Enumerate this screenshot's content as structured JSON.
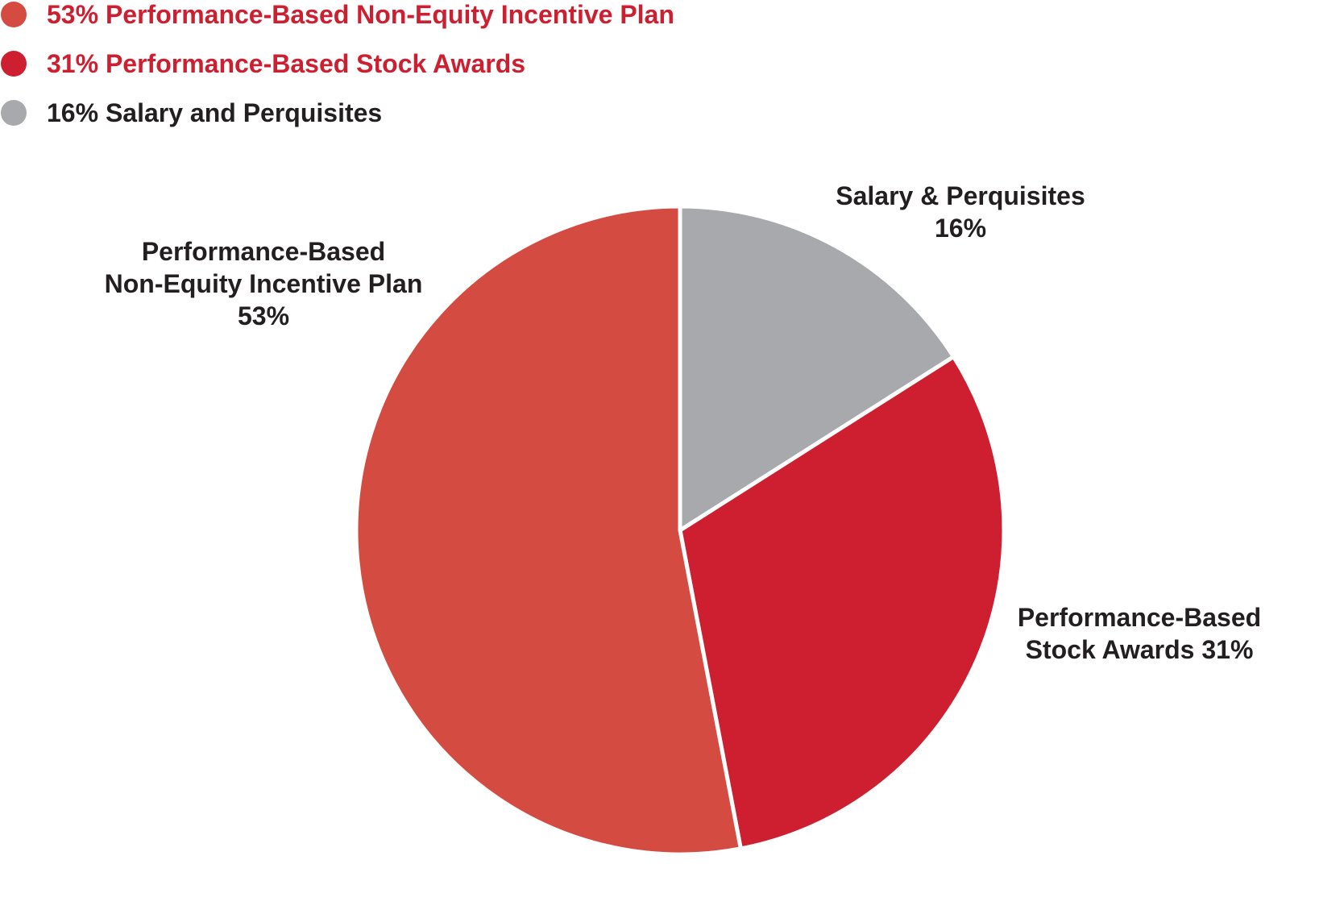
{
  "chart_data": {
    "type": "pie",
    "start": "12 o'clock",
    "direction": "clockwise",
    "slices": [
      {
        "key": "salary",
        "value": 16,
        "color": "#a7a9ac",
        "legend_label": "16% Salary and Perquisites",
        "legend_color": "#231f20",
        "label_lines": [
          "Salary & Perquisites",
          "16%"
        ]
      },
      {
        "key": "stock",
        "value": 31,
        "color": "#ce1f31",
        "legend_label": "31% Performance-Based Stock Awards",
        "legend_color": "#ce1f31",
        "label_lines": [
          "Performance-Based",
          "Stock Awards 31%"
        ]
      },
      {
        "key": "non_equity",
        "value": 53,
        "color": "#d44b42",
        "legend_label": "53% Performance-Based Non-Equity Incentive Plan",
        "legend_color": "#ce1f31",
        "label_lines": [
          "Performance-Based",
          "Non-Equity Incentive Plan",
          "53%"
        ]
      }
    ],
    "legend_order": [
      "non_equity",
      "stock",
      "salary"
    ],
    "legend_position": "top-left"
  }
}
